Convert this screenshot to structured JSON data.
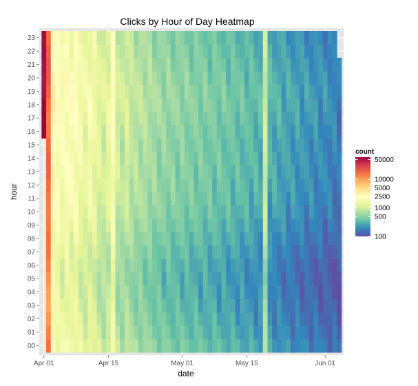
{
  "chart_data": {
    "type": "heatmap",
    "title": "Clicks by Hour of Day Heatmap",
    "xlabel": "date",
    "ylabel": "hour",
    "x_tick_labels": [
      "Apr 01",
      "Apr 15",
      "May 01",
      "May 15",
      "Jun 01"
    ],
    "x_tick_dates": [
      "2013-04-01",
      "2013-04-15",
      "2013-05-01",
      "2013-05-15",
      "2013-06-01"
    ],
    "xlim": [
      "2013-03-31",
      "2013-06-05"
    ],
    "y_tick_labels": [
      "00",
      "01",
      "02",
      "03",
      "04",
      "05",
      "06",
      "07",
      "08",
      "09",
      "10",
      "11",
      "12",
      "13",
      "14",
      "15",
      "16",
      "17",
      "18",
      "19",
      "20",
      "21",
      "22",
      "23"
    ],
    "color_scale": "log",
    "legend": {
      "title": "count",
      "position": "right",
      "labels": [
        "50000",
        "10000",
        "5000",
        "2500",
        "1000",
        "500",
        "100"
      ],
      "values": [
        50000,
        10000,
        5000,
        2500,
        1000,
        500,
        100
      ],
      "range": [
        100,
        60000
      ],
      "colors": [
        "#9e0142",
        "#d53e4f",
        "#f46d43",
        "#fdae61",
        "#fee08b",
        "#ffffbf",
        "#e6f598",
        "#abdda4",
        "#66c2a5",
        "#3288bd",
        "#5e4fa2"
      ]
    },
    "grid": true,
    "panel_background": "#e5e5e5",
    "first_date": "2013-04-01",
    "last_date": "2013-06-04",
    "first_day_start_hour": 16,
    "last_day_end_hour": 21,
    "daily_profile": [
      48000,
      16000,
      2400,
      2100,
      1700,
      2000,
      1800,
      1900,
      1500,
      1300,
      1600,
      1400,
      1100,
      1000,
      1200,
      1900,
      900,
      800,
      950,
      750,
      700,
      680,
      650,
      600,
      560,
      520,
      500,
      480,
      470,
      450,
      460,
      430,
      420,
      410,
      400,
      390,
      380,
      370,
      360,
      350,
      340,
      330,
      320,
      310,
      300,
      290,
      280,
      270,
      900,
      260,
      250,
      240,
      230,
      220,
      215,
      210,
      200,
      195,
      190,
      185,
      180,
      175,
      170,
      160,
      150
    ],
    "hourly_factor": [
      0.95,
      0.85,
      0.8,
      0.75,
      0.72,
      0.7,
      0.72,
      0.78,
      0.85,
      0.92,
      1.0,
      1.05,
      1.08,
      1.1,
      1.12,
      1.1,
      1.15,
      1.2,
      1.25,
      1.25,
      1.2,
      1.15,
      1.1,
      1.05
    ]
  }
}
